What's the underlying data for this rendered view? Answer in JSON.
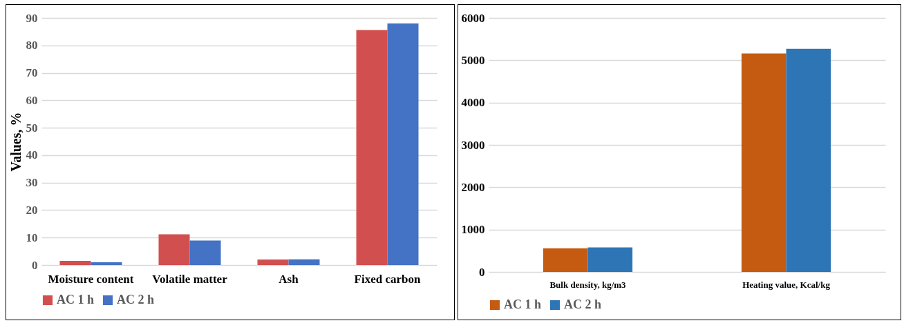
{
  "chart_data": [
    {
      "type": "bar",
      "ylabel": "Values, %",
      "categories": [
        "Moisture content",
        "Volatile matter",
        "Ash",
        "Fixed carbon"
      ],
      "series": [
        {
          "name": "AC 1 h",
          "color": "#d24f4f",
          "values": [
            1.5,
            11.2,
            2.0,
            85.6
          ]
        },
        {
          "name": "AC 2 h",
          "color": "#4472c4",
          "values": [
            1.0,
            8.9,
            2.1,
            88.0
          ]
        }
      ],
      "ylim": [
        0,
        90
      ],
      "yticks": [
        0,
        10,
        20,
        30,
        40,
        50,
        60,
        70,
        80,
        90
      ],
      "grid": "y",
      "legend": "bottom"
    },
    {
      "type": "bar",
      "categories": [
        "Bulk density, kg/m3",
        "Heating value, Kcal/kg"
      ],
      "series": [
        {
          "name": "AC 1 h",
          "color": "#c55a11",
          "values": [
            560,
            5160
          ]
        },
        {
          "name": "AC 2 h",
          "color": "#2e75b6",
          "values": [
            580,
            5270
          ]
        }
      ],
      "ylim": [
        0,
        6000
      ],
      "yticks": [
        0,
        1000,
        2000,
        3000,
        4000,
        5000,
        6000
      ],
      "grid": "y",
      "legend": "bottom"
    }
  ]
}
